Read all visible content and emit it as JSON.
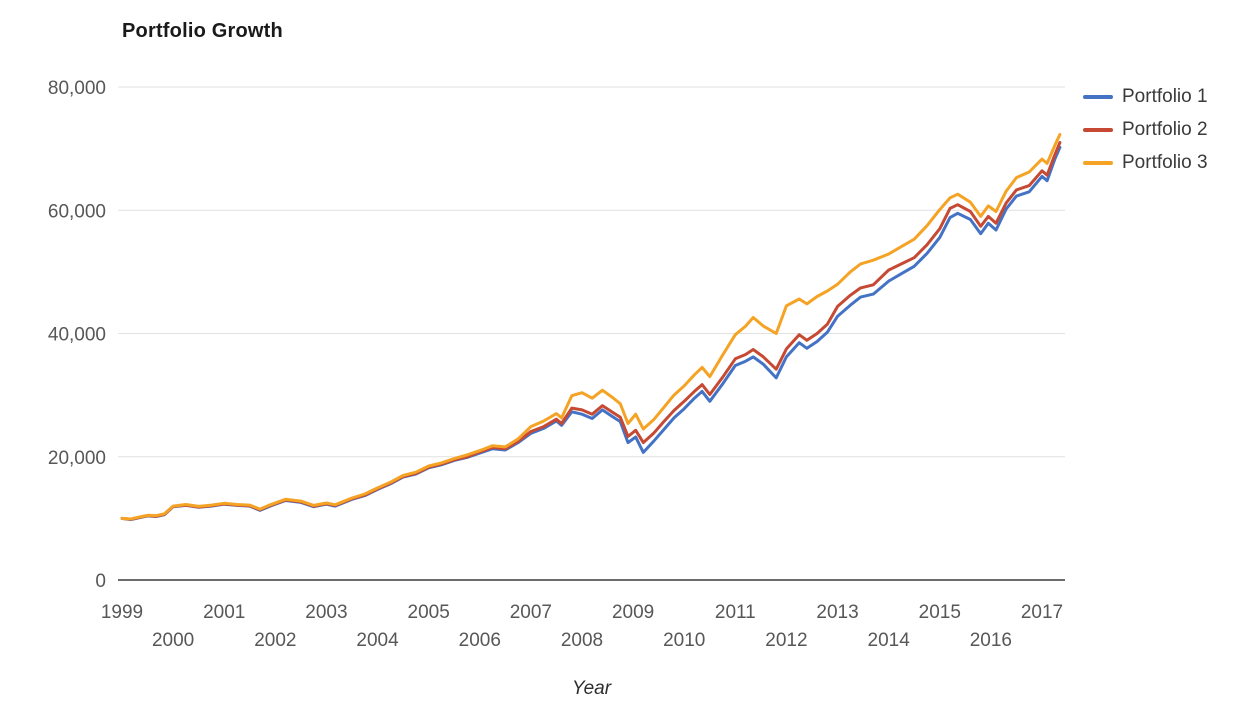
{
  "chart_data": {
    "type": "line",
    "title": "Portfolio Growth",
    "xlabel": "Year",
    "ylabel": "",
    "xlim": [
      1998.9,
      2017.45
    ],
    "ylim": [
      0,
      80000
    ],
    "grid": "horizontal-only",
    "legend_position": "right",
    "x_ticks": [
      1999,
      2000,
      2001,
      2002,
      2003,
      2004,
      2005,
      2006,
      2007,
      2008,
      2009,
      2010,
      2011,
      2012,
      2013,
      2014,
      2015,
      2016,
      2017
    ],
    "x_tick_note": "year labels staggered: odd years on upper row, even years on lower row",
    "y_ticks": [
      {
        "value": 0,
        "label": "0"
      },
      {
        "value": 20000,
        "label": "20,000"
      },
      {
        "value": 40000,
        "label": "40,000"
      },
      {
        "value": 60000,
        "label": "60,000"
      },
      {
        "value": 80000,
        "label": "80,000"
      }
    ],
    "x": [
      1999.0,
      1999.17,
      1999.33,
      1999.5,
      1999.67,
      1999.83,
      2000.0,
      2000.25,
      2000.5,
      2000.75,
      2001.0,
      2001.25,
      2001.5,
      2001.7,
      2001.9,
      2002.2,
      2002.5,
      2002.75,
      2003.0,
      2003.17,
      2003.5,
      2003.75,
      2004.0,
      2004.25,
      2004.5,
      2004.75,
      2005.0,
      2005.25,
      2005.5,
      2005.75,
      2006.0,
      2006.25,
      2006.5,
      2006.75,
      2007.0,
      2007.25,
      2007.5,
      2007.6,
      2007.8,
      2008.0,
      2008.2,
      2008.4,
      2008.6,
      2008.75,
      2008.9,
      2009.05,
      2009.2,
      2009.4,
      2009.6,
      2009.8,
      2010.0,
      2010.2,
      2010.35,
      2010.5,
      2010.75,
      2011.0,
      2011.2,
      2011.35,
      2011.55,
      2011.8,
      2012.0,
      2012.25,
      2012.4,
      2012.6,
      2012.8,
      2013.0,
      2013.25,
      2013.45,
      2013.7,
      2014.0,
      2014.25,
      2014.5,
      2014.75,
      2015.0,
      2015.2,
      2015.35,
      2015.6,
      2015.8,
      2015.95,
      2016.1,
      2016.3,
      2016.5,
      2016.75,
      2017.0,
      2017.1,
      2017.25,
      2017.35
    ],
    "series": [
      {
        "name": "Portfolio 1",
        "color": "#4473C5",
        "values": [
          10000,
          9800,
          10100,
          10400,
          10300,
          10600,
          11900,
          12100,
          11800,
          12000,
          12300,
          12100,
          12000,
          11300,
          12000,
          12900,
          12600,
          11900,
          12300,
          12000,
          13100,
          13700,
          14700,
          15600,
          16700,
          17200,
          18200,
          18700,
          19400,
          19900,
          20600,
          21300,
          21100,
          22300,
          23800,
          24600,
          25800,
          25100,
          27300,
          26900,
          26200,
          27600,
          26500,
          25700,
          22300,
          23200,
          20700,
          22500,
          24400,
          26300,
          27800,
          29500,
          30600,
          29000,
          31800,
          34800,
          35500,
          36200,
          35000,
          32800,
          36200,
          38500,
          37600,
          38700,
          40200,
          42800,
          44600,
          45900,
          46400,
          48500,
          49700,
          50900,
          53000,
          55600,
          58800,
          59500,
          58500,
          56200,
          57900,
          56800,
          60200,
          62300,
          63000,
          65500,
          64800,
          68300,
          70200
        ]
      },
      {
        "name": "Portfolio 2",
        "color": "#C64A33",
        "values": [
          10000,
          9850,
          10150,
          10450,
          10350,
          10650,
          11950,
          12150,
          11850,
          12050,
          12350,
          12150,
          12050,
          11400,
          12100,
          13000,
          12700,
          12000,
          12400,
          12100,
          13200,
          13800,
          14800,
          15700,
          16800,
          17300,
          18300,
          18800,
          19500,
          20000,
          20800,
          21500,
          21300,
          22500,
          24100,
          24900,
          26100,
          25400,
          27900,
          27600,
          26900,
          28300,
          27200,
          26400,
          23300,
          24300,
          22300,
          23800,
          25700,
          27500,
          29000,
          30600,
          31700,
          30100,
          32900,
          35900,
          36600,
          37400,
          36200,
          34200,
          37500,
          39800,
          38900,
          40000,
          41500,
          44400,
          46200,
          47400,
          47900,
          50300,
          51300,
          52300,
          54400,
          57000,
          60300,
          60900,
          59800,
          57400,
          59000,
          57900,
          61200,
          63300,
          64000,
          66400,
          65700,
          69000,
          71000
        ]
      },
      {
        "name": "Portfolio 3",
        "color": "#F5A325",
        "values": [
          10000,
          9900,
          10200,
          10500,
          10450,
          10750,
          12000,
          12250,
          11950,
          12150,
          12450,
          12250,
          12150,
          11500,
          12200,
          13100,
          12800,
          12100,
          12500,
          12200,
          13300,
          13950,
          14950,
          15850,
          16950,
          17500,
          18500,
          19000,
          19700,
          20300,
          21000,
          21800,
          21600,
          22900,
          24900,
          25800,
          27000,
          26300,
          29900,
          30400,
          29500,
          30800,
          29600,
          28600,
          25400,
          26900,
          24500,
          26000,
          28000,
          30000,
          31500,
          33300,
          34500,
          33000,
          36500,
          39800,
          41200,
          42600,
          41200,
          40000,
          44500,
          45600,
          44800,
          46000,
          46900,
          48000,
          50000,
          51300,
          51900,
          52900,
          54100,
          55300,
          57500,
          60100,
          62000,
          62600,
          61300,
          59000,
          60700,
          59800,
          63100,
          65300,
          66200,
          68300,
          67600,
          70500,
          72300
        ]
      }
    ]
  }
}
